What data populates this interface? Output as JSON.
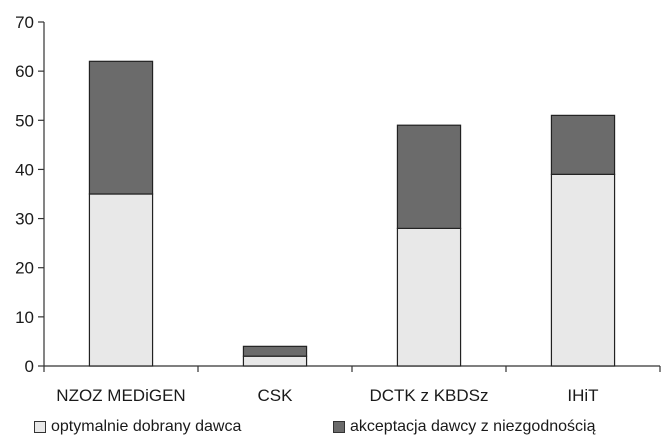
{
  "chart_data": {
    "type": "bar",
    "stacked": true,
    "categories": [
      "NZOZ MEDiGEN",
      "CSK",
      "DCTK z KBDSz",
      "IHiT"
    ],
    "series": [
      {
        "name": "optymalnie dobrany dawca",
        "values": [
          35,
          2,
          28,
          39
        ],
        "color": "#e8e8e8"
      },
      {
        "name": "akceptacja dawcy z niezgodnością",
        "values": [
          27,
          2,
          21,
          12
        ],
        "color": "#6b6b6b"
      }
    ],
    "yticks": [
      "0",
      "10",
      "20",
      "30",
      "40",
      "50",
      "60",
      "70"
    ],
    "ylim": [
      0,
      70
    ],
    "grid": false,
    "legend_position": "bottom"
  }
}
